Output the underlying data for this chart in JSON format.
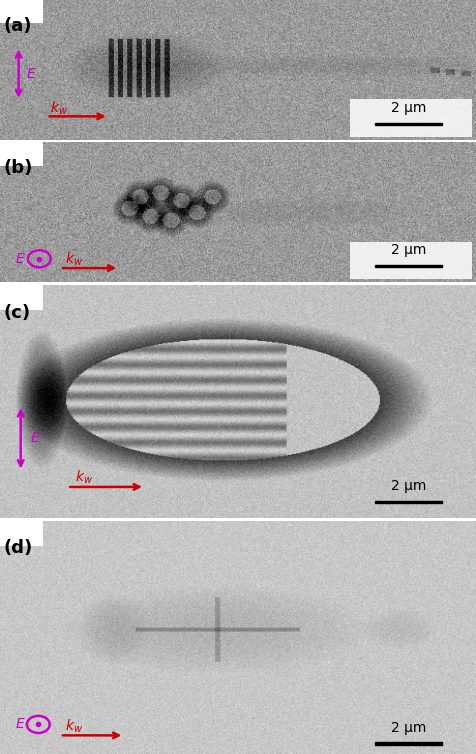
{
  "fig_width": 4.76,
  "fig_height": 7.54,
  "dpi": 100,
  "panels": [
    "(a)",
    "(b)",
    "(c)",
    "(d)"
  ],
  "label_color": "#cc00cc",
  "arrow_color": "#cc0000",
  "scale_bar_text": "2 μm",
  "panel_label_fontsize": 13,
  "annotation_fontsize": 10,
  "scale_fontsize": 10,
  "E_label": "E",
  "k_label": "$k_{w}$"
}
